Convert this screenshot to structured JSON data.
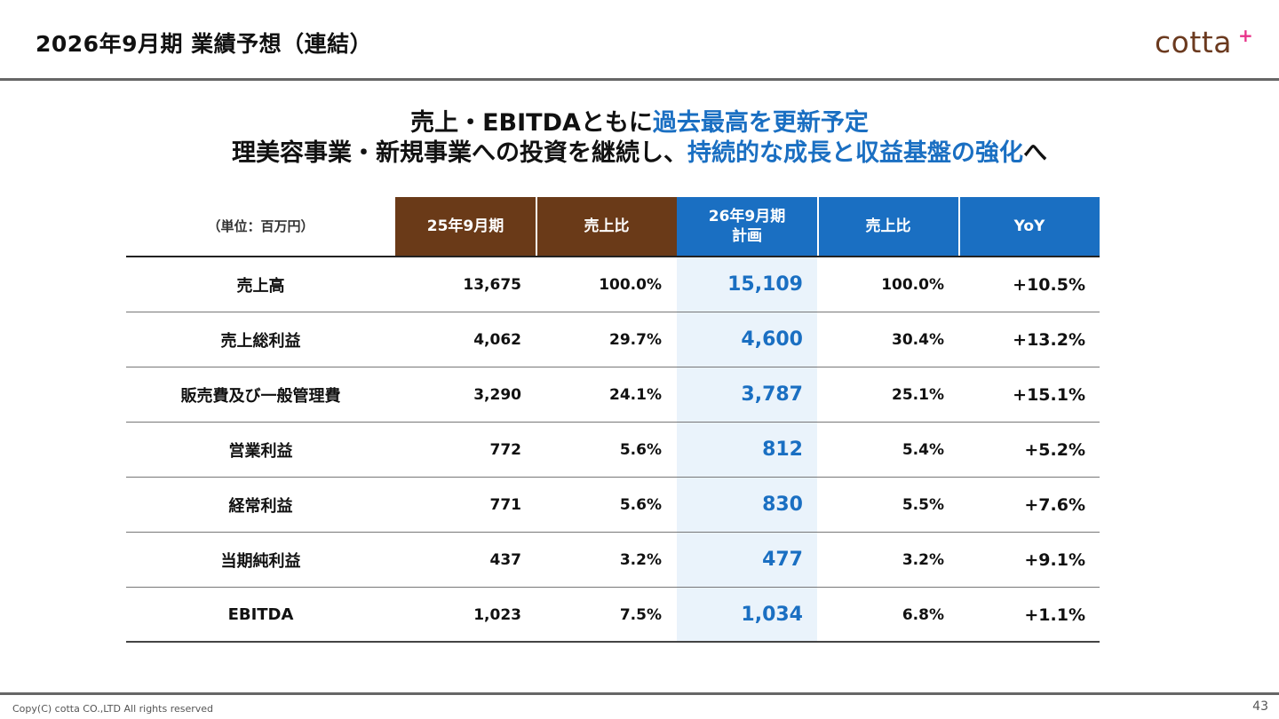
{
  "header": {
    "title": "2026年9月期 業績予想（連結）",
    "logo_text": "cotta",
    "logo_plus": "+"
  },
  "headline": {
    "line1_part1": "売上・EBITDAともに",
    "line1_highlight": "過去最高を更新予定",
    "line2_part1": "理美容事業・新規事業への投資を継続し、",
    "line2_highlight": "持続的な成長と収益基盤の強化",
    "line2_part2": "へ"
  },
  "table": {
    "unit_label": "（単位：百万円）",
    "columns": {
      "fy25": "25年9月期",
      "fy25_ratio": "売上比",
      "fy26_line1": "26年9月期",
      "fy26_line2": "計画",
      "fy26_ratio": "売上比",
      "yoy": "YoY"
    },
    "rows": [
      {
        "label": "売上高",
        "v25": "13,675",
        "r25": "100.0%",
        "v26": "15,109",
        "r26": "100.0%",
        "yoy": "+10.5%"
      },
      {
        "label": "売上総利益",
        "v25": "4,062",
        "r25": "29.7%",
        "v26": "4,600",
        "r26": "30.4%",
        "yoy": "+13.2%"
      },
      {
        "label": "販売費及び一般管理費",
        "v25": "3,290",
        "r25": "24.1%",
        "v26": "3,787",
        "r26": "25.1%",
        "yoy": "+15.1%"
      },
      {
        "label": "営業利益",
        "v25": "772",
        "r25": "5.6%",
        "v26": "812",
        "r26": "5.4%",
        "yoy": "+5.2%"
      },
      {
        "label": "経常利益",
        "v25": "771",
        "r25": "5.6%",
        "v26": "830",
        "r26": "5.5%",
        "yoy": "+7.6%"
      },
      {
        "label": "当期純利益",
        "v25": "437",
        "r25": "3.2%",
        "v26": "477",
        "r26": "3.2%",
        "yoy": "+9.1%"
      },
      {
        "label": "EBITDA",
        "v25": "1,023",
        "r25": "7.5%",
        "v26": "1,034",
        "r26": "6.8%",
        "yoy": "+1.1%"
      }
    ]
  },
  "footer": {
    "copyright": "Copy(C) cotta CO.,LTD All rights reserved",
    "page_number": "43"
  },
  "colors": {
    "brown": "#6a3a18",
    "blue": "#1a6fc2",
    "highlight_band": "#eaf3fb",
    "logo_pink": "#e8338a"
  }
}
